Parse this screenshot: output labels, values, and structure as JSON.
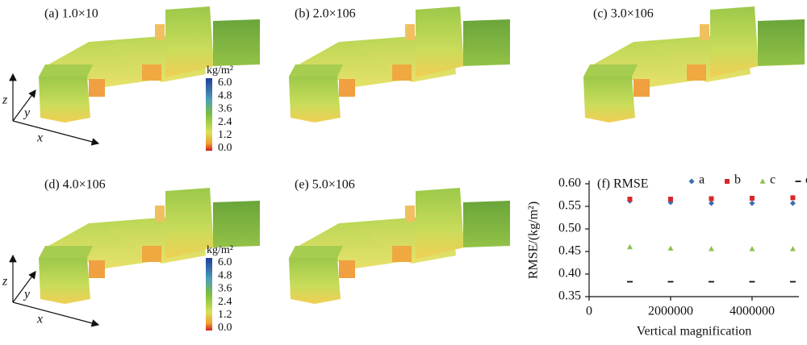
{
  "panels": [
    {
      "label": "(a) 1.0×10"
    },
    {
      "label": "(b) 2.0×106"
    },
    {
      "label": "(c) 3.0×106"
    },
    {
      "label": "(d) 4.0×106"
    },
    {
      "label": "(e) 5.0×106"
    }
  ],
  "colorbar": {
    "unit": "kg/m²",
    "labels": [
      "6.0",
      "4.8",
      "3.6",
      "2.4",
      "1.2",
      "0.0"
    ]
  },
  "axes_indicator": {
    "z": "z",
    "y": "y",
    "x": "x"
  },
  "chart_data": {
    "type": "scatter",
    "title": "(f) RMSE",
    "xlabel": "Vertical magnification",
    "ylabel": "RMSE/(kg/m²)",
    "x": [
      1000000,
      2000000,
      3000000,
      4000000,
      5000000
    ],
    "series": [
      {
        "name": "a",
        "color": "#3a6fb5",
        "marker": "diamond",
        "values": [
          0.562,
          0.559,
          0.557,
          0.557,
          0.557
        ]
      },
      {
        "name": "b",
        "color": "#d62728",
        "marker": "square",
        "values": [
          0.566,
          0.566,
          0.567,
          0.568,
          0.569
        ]
      },
      {
        "name": "c",
        "color": "#8cc152",
        "marker": "triangle",
        "values": [
          0.46,
          0.457,
          0.456,
          0.456,
          0.456
        ]
      },
      {
        "name": "d",
        "color": "#111111",
        "marker": "dash",
        "values": [
          0.383,
          0.383,
          0.383,
          0.383,
          0.383
        ]
      }
    ],
    "xlim": [
      0,
      5150000
    ],
    "xticks": [
      0,
      2000000,
      4000000
    ],
    "ylim": [
      0.35,
      0.6
    ],
    "yticks": [
      0.35,
      {
        "value": 0.4,
        "label": "0.40"
      },
      0.45,
      {
        "value": 0.5,
        "label": "0.50"
      },
      0.55,
      {
        "value": 0.6,
        "label": "0.60"
      }
    ]
  }
}
